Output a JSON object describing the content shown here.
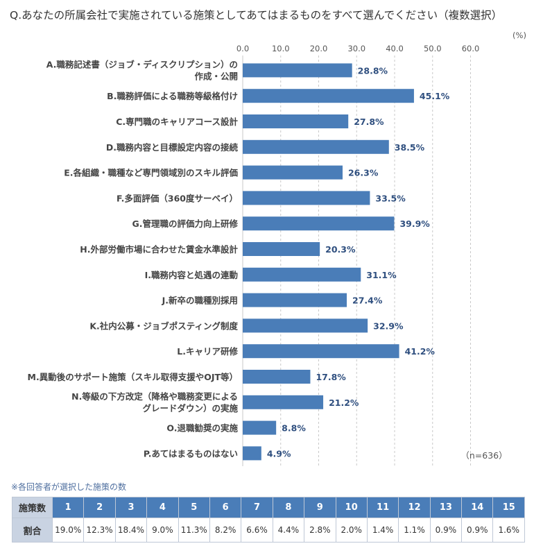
{
  "title": "Q.あなたの所属会社で実施されている施策としてあてはまるものをすべて選んでください（複数選択）",
  "chart_data": {
    "type": "bar",
    "orientation": "horizontal",
    "unit_label": "(%)",
    "xlim": [
      0,
      60
    ],
    "ticks": [
      "0.0",
      "10.0",
      "20.0",
      "30.0",
      "40.0",
      "50.0",
      "60.0"
    ],
    "tick_values": [
      0,
      10,
      20,
      30,
      40,
      50,
      60
    ],
    "grid": "vertical dashed",
    "bar_color": "#4a7db8",
    "categories": [
      [
        "A.職務記述書（ジョブ・ディスクリプション）の",
        "作成・公開"
      ],
      [
        "B.職務評価による職務等級格付け"
      ],
      [
        "C.専門職のキャリアコース設計"
      ],
      [
        "D.職務内容と目標設定内容の接続"
      ],
      [
        "E.各組織・職種など専門領域別のスキル評価"
      ],
      [
        "F.多面評価（360度サーベイ）"
      ],
      [
        "G.管理職の評価力向上研修"
      ],
      [
        "H.外部労働市場に合わせた賃金水準設計"
      ],
      [
        "I.職務内容と処遇の連動"
      ],
      [
        "J.新卒の職種別採用"
      ],
      [
        "K.社内公募・ジョブポスティング制度"
      ],
      [
        "L.キャリア研修"
      ],
      [
        "M.異動後のサポート施策（スキル取得支援やOJT等）"
      ],
      [
        "N.等級の下方改定（降格や職務変更による",
        "グレードダウン）の実施"
      ],
      [
        "O.退職勧奨の実施"
      ],
      [
        "P.あてはまるものはない"
      ]
    ],
    "values": [
      28.8,
      45.1,
      27.8,
      38.5,
      26.3,
      33.5,
      39.9,
      20.3,
      31.1,
      27.4,
      32.9,
      41.2,
      17.8,
      21.2,
      8.8,
      4.9
    ],
    "value_labels": [
      "28.8%",
      "45.1%",
      "27.8%",
      "38.5%",
      "26.3%",
      "33.5%",
      "39.9%",
      "20.3%",
      "31.1%",
      "27.4%",
      "32.9%",
      "41.2%",
      "17.8%",
      "21.2%",
      "8.8%",
      "4.9%"
    ],
    "sample_note": "（n=636）"
  },
  "distribution": {
    "note": "※各回答者が選択した施策の数",
    "row1_header": "施策数",
    "row2_header": "割合",
    "counts": [
      "1",
      "2",
      "3",
      "4",
      "5",
      "6",
      "7",
      "8",
      "9",
      "10",
      "11",
      "12",
      "13",
      "14",
      "15"
    ],
    "shares": [
      "19.0%",
      "12.3%",
      "18.4%",
      "9.0%",
      "11.3%",
      "8.2%",
      "6.6%",
      "4.4%",
      "2.8%",
      "2.0%",
      "1.4%",
      "1.1%",
      "0.9%",
      "0.9%",
      "1.6%"
    ]
  }
}
